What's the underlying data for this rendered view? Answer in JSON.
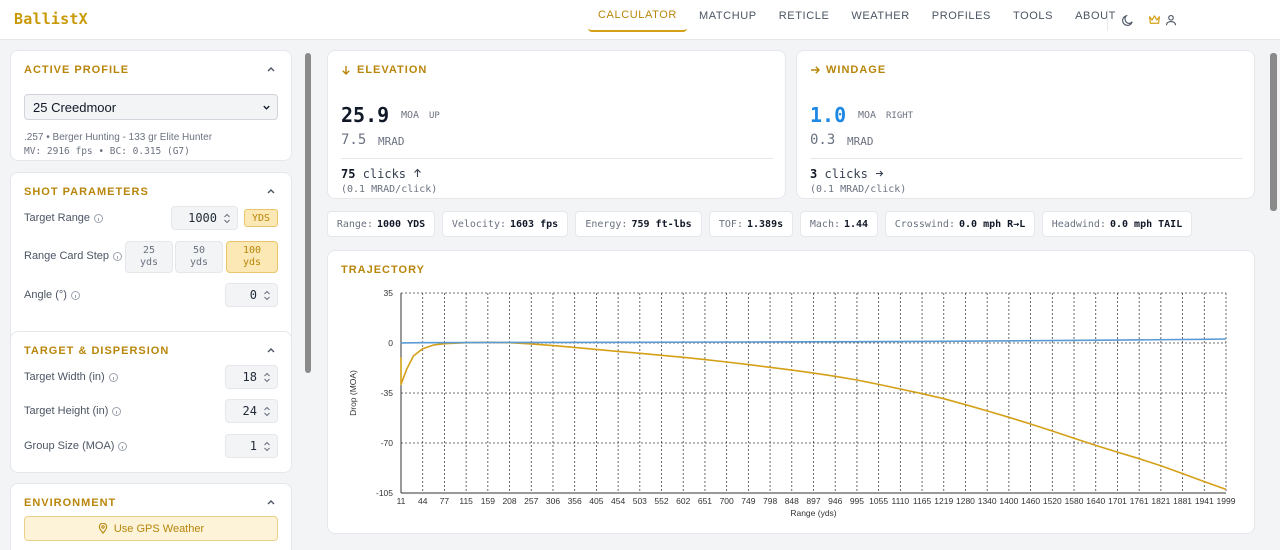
{
  "app": {
    "title": "BallistX"
  },
  "nav": {
    "items": [
      "CALCULATOR",
      "MATCHUP",
      "RETICLE",
      "WEATHER",
      "PROFILES",
      "TOOLS",
      "ABOUT"
    ],
    "active": "CALCULATOR"
  },
  "header_icons": [
    "moon-icon",
    "crown-icon",
    "user-icon"
  ],
  "sidebar": {
    "active_profile": {
      "title": "ACTIVE PROFILE",
      "selected": "25 Creedmoor",
      "line1": ".257 • Berger Hunting - 133 gr Elite Hunter",
      "line2": "MV: 2916 fps • BC: 0.315 (G7)"
    },
    "shot_parameters": {
      "title": "SHOT PARAMETERS",
      "target_range_label": "Target Range",
      "target_range_value": "1000",
      "range_unit": "YDS",
      "range_card_step_label": "Range Card Step",
      "steps": [
        {
          "num": "25",
          "unit": "yds"
        },
        {
          "num": "50",
          "unit": "yds"
        },
        {
          "num": "100",
          "unit": "yds"
        }
      ],
      "active_step": "100",
      "angle_label": "Angle (°)",
      "angle_value": "0"
    },
    "target_dispersion": {
      "title": "TARGET & DISPERSION",
      "target_width_label": "Target Width (in)",
      "target_width_value": "18",
      "target_height_label": "Target Height (in)",
      "target_height_value": "24",
      "group_size_label": "Group Size (MOA)",
      "group_size_value": "1"
    },
    "environment": {
      "title": "ENVIRONMENT",
      "gps_button": "Use GPS Weather"
    }
  },
  "elevation": {
    "title": "ELEVATION",
    "moa": "25.9",
    "moa_unit": "MOA",
    "direction": "UP",
    "mrad": "7.5",
    "mrad_unit": "MRAD",
    "clicks": "75",
    "clicks_label": "clicks",
    "click_value": "(0.1 MRAD/click)"
  },
  "windage": {
    "title": "WINDAGE",
    "moa": "1.0",
    "moa_unit": "MOA",
    "direction": "RIGHT",
    "mrad": "0.3",
    "mrad_unit": "MRAD",
    "clicks": "3",
    "clicks_label": "clicks",
    "click_value": "(0.1 MRAD/click)"
  },
  "stats": [
    {
      "label": "Range:",
      "value": "1000 YDS"
    },
    {
      "label": "Velocity:",
      "value": "1603 fps"
    },
    {
      "label": "Energy:",
      "value": "759 ft-lbs"
    },
    {
      "label": "TOF:",
      "value": "1.389s"
    },
    {
      "label": "Mach:",
      "value": "1.44"
    },
    {
      "label": "Crosswind:",
      "value": "0.0 mph R→L"
    },
    {
      "label": "Headwind:",
      "value": "0.0 mph TAIL"
    }
  ],
  "colors": {
    "accent": "#d4a017",
    "accent_text": "#b8860b",
    "windage_value": "#1e88e5",
    "drop_line": "#d4a017",
    "wind_line": "#5b9bd5"
  },
  "chart_data": {
    "type": "line",
    "title": "TRAJECTORY",
    "xlabel": "Range (yds)",
    "ylabel": "Drop (MOA)",
    "ylim": [
      -105,
      35
    ],
    "yticks": [
      35,
      0,
      -35,
      -70,
      -105
    ],
    "xlim": [
      0,
      1999
    ],
    "xticks": [
      11,
      44,
      77,
      115,
      159,
      208,
      257,
      306,
      356,
      405,
      454,
      503,
      552,
      602,
      651,
      700,
      749,
      798,
      848,
      897,
      946,
      995,
      1055,
      1110,
      1165,
      1219,
      1280,
      1340,
      1400,
      1460,
      1520,
      1580,
      1640,
      1701,
      1761,
      1821,
      1881,
      1941,
      1999
    ],
    "grid": true,
    "series": [
      {
        "x": [
          0,
          5,
          11,
          20,
          30,
          44,
          60,
          77,
          115,
          159,
          208,
          257,
          306,
          356,
          405,
          454,
          503,
          552,
          602,
          651,
          700,
          749,
          798,
          848,
          897,
          946,
          995,
          1055,
          1110,
          1165,
          1219,
          1280,
          1340,
          1400,
          1460,
          1520,
          1580,
          1640,
          1701,
          1761,
          1821,
          1881,
          1941,
          1999
        ],
        "values": [
          -10,
          -25,
          -29,
          -18,
          -9,
          -4,
          -1.5,
          -0.5,
          0.2,
          0.5,
          0.2,
          -0.6,
          -1.8,
          -3.1,
          -4.5,
          -5.9,
          -7.2,
          -8.6,
          -10.0,
          -11.6,
          -13.3,
          -15.1,
          -17.0,
          -19.0,
          -21.1,
          -23.3,
          -25.9,
          -29.0,
          -32.2,
          -35.5,
          -39.0,
          -43.2,
          -47.5,
          -52.0,
          -56.7,
          -61.6,
          -66.7,
          -71.7,
          -76.4,
          -81.0,
          -85.9,
          -91.4,
          -97.0,
          -102.5
        ]
      },
      {
        "x": [
          0,
          11,
          44,
          115,
          257,
          503,
          749,
          995,
          1219,
          1460,
          1701,
          1941,
          1999
        ],
        "values": [
          0,
          0.1,
          0.2,
          0.3,
          0.4,
          0.5,
          0.7,
          0.9,
          1.2,
          1.6,
          2.0,
          2.6,
          2.8
        ]
      }
    ]
  }
}
